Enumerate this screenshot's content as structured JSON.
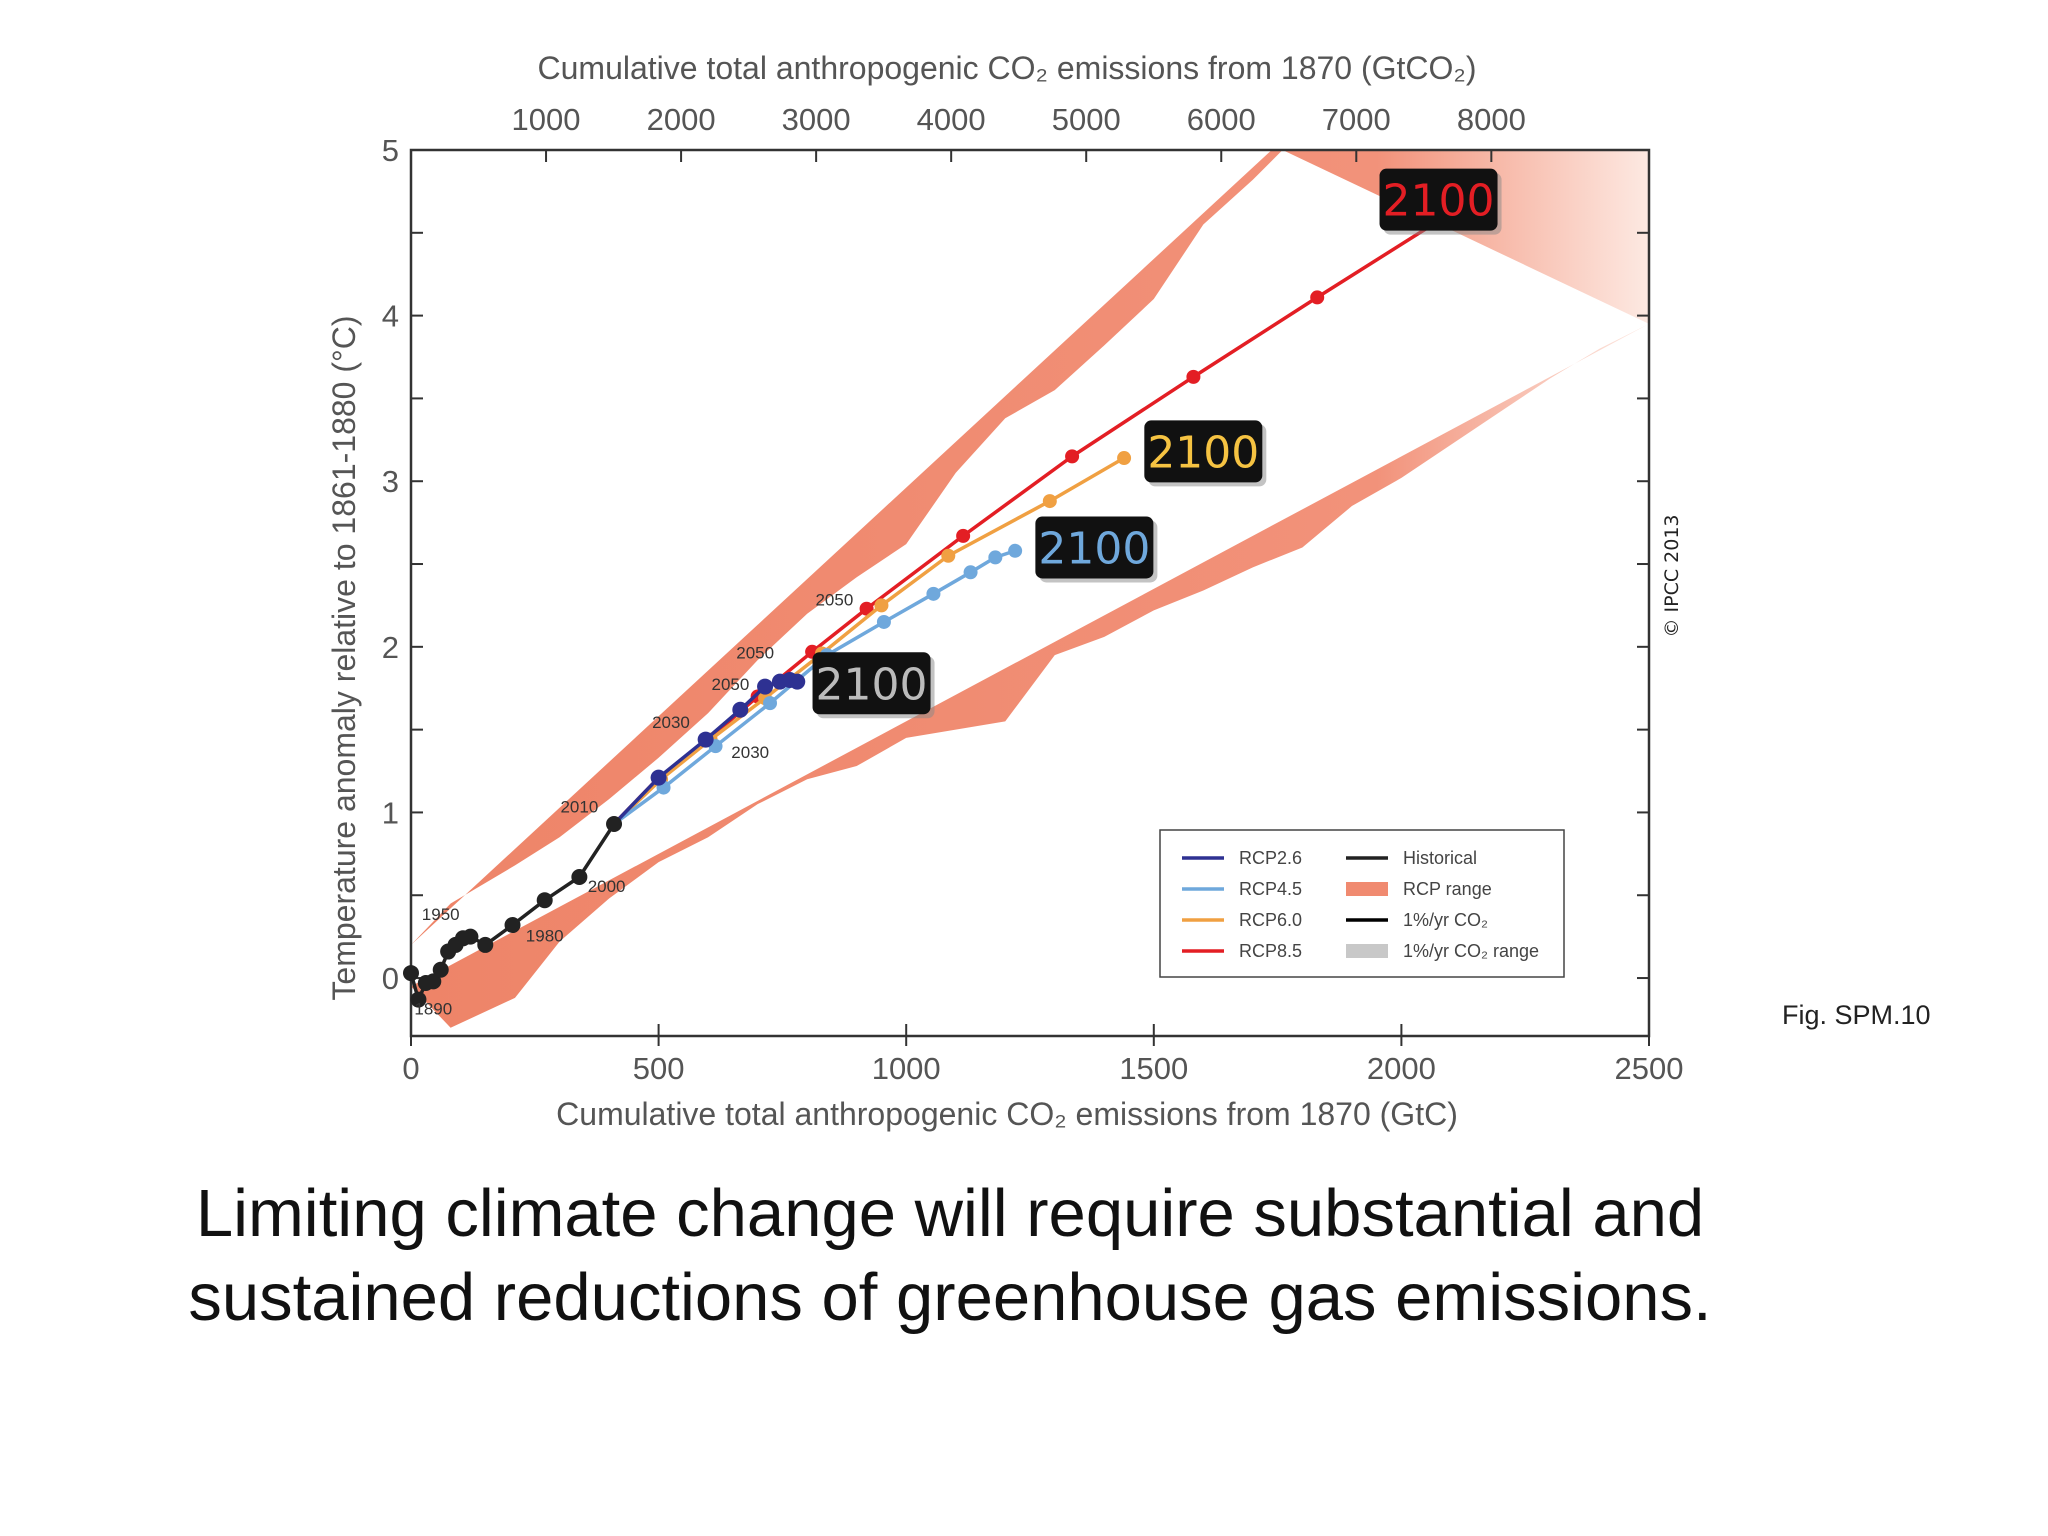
{
  "chart_data": {
    "type": "line",
    "title": "",
    "xlabel": "Cumulative total anthropogenic CO₂ emissions from 1870 (GtC)",
    "x2label": "Cumulative total anthropogenic CO₂ emissions from 1870 (GtCO₂)",
    "ylabel": "Temperature anomaly relative to 1861-1880 (°C)",
    "xlim": [
      0,
      2500
    ],
    "ylim": [
      -0.35,
      5
    ],
    "xticks": [
      0,
      500,
      1000,
      1500,
      2000,
      2500
    ],
    "xtick_labels": [
      "0",
      "500",
      "1000",
      "1500",
      "2000",
      "2500"
    ],
    "x2ticks": [
      1000,
      2000,
      3000,
      4000,
      5000,
      6000,
      7000,
      8000
    ],
    "x2tick_labels": [
      "1000",
      "2000",
      "3000",
      "4000",
      "5000",
      "6000",
      "7000",
      "8000"
    ],
    "yticks": [
      0,
      1,
      2,
      3,
      4,
      5
    ],
    "ytick_labels": [
      "0",
      "1",
      "2",
      "3",
      "4",
      "5"
    ],
    "legend_position": "bottom-right",
    "grid": false,
    "series": [
      {
        "name": "Historical",
        "color": "#222222",
        "points": [
          [
            0,
            0.03
          ],
          [
            15,
            -0.13
          ],
          [
            30,
            -0.03
          ],
          [
            45,
            -0.02
          ],
          [
            60,
            0.05
          ],
          [
            75,
            0.16
          ],
          [
            90,
            0.2
          ],
          [
            105,
            0.24
          ],
          [
            120,
            0.25
          ],
          [
            150,
            0.2
          ],
          [
            205,
            0.32
          ],
          [
            270,
            0.47
          ],
          [
            340,
            0.61
          ],
          [
            410,
            0.93
          ]
        ]
      },
      {
        "name": "RCP2.6",
        "color": "#2e3192",
        "points": [
          [
            410,
            0.93
          ],
          [
            500,
            1.21
          ],
          [
            595,
            1.44
          ],
          [
            665,
            1.62
          ],
          [
            715,
            1.76
          ],
          [
            745,
            1.79
          ],
          [
            765,
            1.8
          ],
          [
            780,
            1.79
          ]
        ]
      },
      {
        "name": "RCP4.5",
        "color": "#6fa8dc",
        "points": [
          [
            410,
            0.93
          ],
          [
            510,
            1.15
          ],
          [
            615,
            1.4
          ],
          [
            725,
            1.66
          ],
          [
            840,
            1.95
          ],
          [
            955,
            2.15
          ],
          [
            1055,
            2.32
          ],
          [
            1130,
            2.45
          ],
          [
            1180,
            2.54
          ],
          [
            1220,
            2.58
          ]
        ]
      },
      {
        "name": "RCP6.0",
        "color": "#f0a042",
        "points": [
          [
            410,
            0.93
          ],
          [
            505,
            1.2
          ],
          [
            605,
            1.44
          ],
          [
            715,
            1.69
          ],
          [
            830,
            1.96
          ],
          [
            950,
            2.25
          ],
          [
            1085,
            2.55
          ],
          [
            1290,
            2.88
          ],
          [
            1440,
            3.14
          ]
        ]
      },
      {
        "name": "RCP8.5",
        "color": "#e31e24",
        "points": [
          [
            410,
            0.93
          ],
          [
            500,
            1.21
          ],
          [
            600,
            1.44
          ],
          [
            700,
            1.7
          ],
          [
            810,
            1.97
          ],
          [
            920,
            2.23
          ],
          [
            1115,
            2.67
          ],
          [
            1335,
            3.15
          ],
          [
            1580,
            3.63
          ],
          [
            1830,
            4.11
          ],
          [
            2095,
            4.61
          ]
        ]
      }
    ],
    "range_series": [
      {
        "name": "RCP range",
        "color": "#f08a70",
        "upper": [
          [
            0,
            0.2
          ],
          [
            80,
            0.45
          ],
          [
            210,
            0.68
          ],
          [
            300,
            0.85
          ],
          [
            400,
            1.08
          ],
          [
            500,
            1.33
          ],
          [
            600,
            1.6
          ],
          [
            700,
            1.92
          ],
          [
            800,
            2.2
          ],
          [
            900,
            2.42
          ],
          [
            1000,
            2.62
          ],
          [
            1100,
            3.05
          ],
          [
            1200,
            3.38
          ],
          [
            1300,
            3.55
          ],
          [
            1400,
            3.82
          ],
          [
            1500,
            4.1
          ],
          [
            1600,
            4.55
          ],
          [
            1700,
            4.82
          ],
          [
            1760,
            5.0
          ]
        ],
        "lower": [
          [
            0,
            -0.05
          ],
          [
            80,
            -0.3
          ],
          [
            210,
            -0.12
          ],
          [
            300,
            0.22
          ],
          [
            400,
            0.48
          ],
          [
            500,
            0.7
          ],
          [
            600,
            0.85
          ],
          [
            700,
            1.05
          ],
          [
            800,
            1.2
          ],
          [
            900,
            1.28
          ],
          [
            1000,
            1.45
          ],
          [
            1200,
            1.55
          ],
          [
            1300,
            1.95
          ],
          [
            1400,
            2.06
          ],
          [
            1500,
            2.22
          ],
          [
            1600,
            2.34
          ],
          [
            1700,
            2.48
          ],
          [
            1800,
            2.6
          ],
          [
            1900,
            2.85
          ],
          [
            2000,
            3.02
          ],
          [
            2100,
            3.22
          ],
          [
            2200,
            3.42
          ],
          [
            2300,
            3.62
          ],
          [
            2400,
            3.8
          ],
          [
            2500,
            3.95
          ]
        ]
      }
    ],
    "year_labels": [
      {
        "text": "1890",
        "x": 45,
        "y": -0.22,
        "color": "#333333"
      },
      {
        "text": "1950",
        "x": 60,
        "y": 0.35,
        "color": "#333333"
      },
      {
        "text": "1980",
        "x": 270,
        "y": 0.22,
        "color": "#333333"
      },
      {
        "text": "2000",
        "x": 395,
        "y": 0.52,
        "color": "#333333"
      },
      {
        "text": "2010",
        "x": 340,
        "y": 1.0,
        "color": "#333333"
      },
      {
        "text": "2030",
        "x": 525,
        "y": 1.51,
        "color": "#2e3192"
      },
      {
        "text": "2030",
        "x": 685,
        "y": 1.33,
        "color": "#9fc5e8"
      },
      {
        "text": "2050",
        "x": 645,
        "y": 1.74,
        "color": "#2e3192"
      },
      {
        "text": "2050",
        "x": 695,
        "y": 1.93,
        "color": "#f6c26b"
      },
      {
        "text": "2050",
        "x": 855,
        "y": 2.25,
        "color": "#e31e24"
      }
    ],
    "badges": [
      {
        "text": "2100",
        "x": 2075,
        "y": 4.7,
        "color": "#e31e24"
      },
      {
        "text": "2100",
        "x": 1600,
        "y": 3.18,
        "color": "#f6c342"
      },
      {
        "text": "2100",
        "x": 1380,
        "y": 2.6,
        "color": "#6fa8dc"
      },
      {
        "text": "2100",
        "x": 930,
        "y": 1.78,
        "color": "#bbbbbb"
      }
    ],
    "legend": [
      {
        "label": "RCP2.6",
        "color": "#2e3192",
        "kind": "line"
      },
      {
        "label": "Historical",
        "color": "#222222",
        "kind": "line"
      },
      {
        "label": "RCP4.5",
        "color": "#6fa8dc",
        "kind": "line"
      },
      {
        "label": "RCP range",
        "color": "#f08a70",
        "kind": "patch"
      },
      {
        "label": "RCP6.0",
        "color": "#f0a042",
        "kind": "line"
      },
      {
        "label": "1%/yr CO₂",
        "color": "#000000",
        "kind": "line"
      },
      {
        "label": "RCP8.5",
        "color": "#e31e24",
        "kind": "line"
      },
      {
        "label": "1%/yr CO₂ range",
        "color": "#c8c8c8",
        "kind": "patch"
      }
    ]
  },
  "figure_ref": "Fig. SPM.10",
  "copyright": "© IPCC 2013",
  "caption": {
    "line1": "Limiting climate change will require substantial and",
    "line2": "sustained reductions of greenhouse gas emissions."
  }
}
